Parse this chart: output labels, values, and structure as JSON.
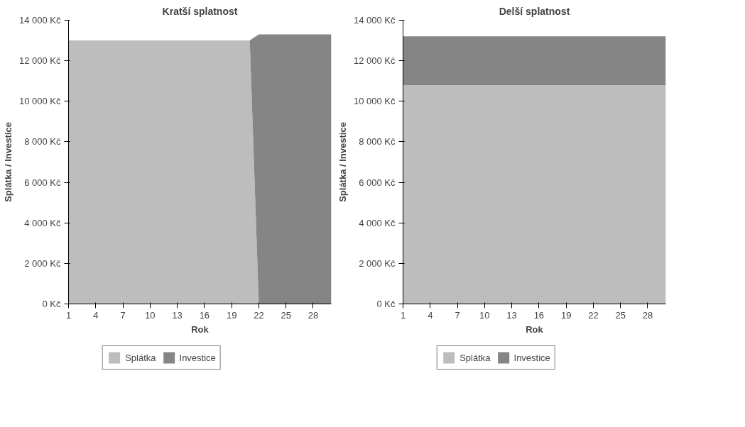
{
  "chart_data": [
    {
      "type": "area",
      "title": "Kratší splatnost",
      "xlabel": "Rok",
      "ylabel": "Splátka / Investice",
      "stacked": true,
      "x": [
        1,
        2,
        3,
        4,
        5,
        6,
        7,
        8,
        9,
        10,
        11,
        12,
        13,
        14,
        15,
        16,
        17,
        18,
        19,
        20,
        21,
        22,
        23,
        24,
        25,
        26,
        27,
        28,
        29,
        30
      ],
      "series": [
        {
          "name": "Splátka",
          "color": "#bdbdbd",
          "values": [
            13000,
            13000,
            13000,
            13000,
            13000,
            13000,
            13000,
            13000,
            13000,
            13000,
            13000,
            13000,
            13000,
            13000,
            13000,
            13000,
            13000,
            13000,
            13000,
            13000,
            13000,
            0,
            0,
            0,
            0,
            0,
            0,
            0,
            0,
            0
          ]
        },
        {
          "name": "Investice",
          "color": "#858585",
          "values": [
            0,
            0,
            0,
            0,
            0,
            0,
            0,
            0,
            0,
            0,
            0,
            0,
            0,
            0,
            0,
            0,
            0,
            0,
            0,
            0,
            0,
            13300,
            13300,
            13300,
            13300,
            13300,
            13300,
            13300,
            13300,
            13300
          ]
        }
      ],
      "xlim": [
        1,
        30
      ],
      "xticks": [
        1,
        4,
        7,
        10,
        13,
        16,
        19,
        22,
        25,
        28
      ],
      "ylim": [
        0,
        14000
      ],
      "yticks": [
        {
          "value": 0,
          "label": "0 Kč"
        },
        {
          "value": 2000,
          "label": "2 000 Kč"
        },
        {
          "value": 4000,
          "label": "4 000 Kč"
        },
        {
          "value": 6000,
          "label": "6 000 Kč"
        },
        {
          "value": 8000,
          "label": "8 000 Kč"
        },
        {
          "value": 10000,
          "label": "10 000 Kč"
        },
        {
          "value": 12000,
          "label": "12 000 Kč"
        },
        {
          "value": 14000,
          "label": "14 000 Kč"
        }
      ],
      "legend": "bottom"
    },
    {
      "type": "area",
      "title": "Delší splatnost",
      "xlabel": "Rok",
      "ylabel": "Splátka / Investice",
      "stacked": true,
      "x": [
        1,
        2,
        3,
        4,
        5,
        6,
        7,
        8,
        9,
        10,
        11,
        12,
        13,
        14,
        15,
        16,
        17,
        18,
        19,
        20,
        21,
        22,
        23,
        24,
        25,
        26,
        27,
        28,
        29,
        30
      ],
      "series": [
        {
          "name": "Splátka",
          "color": "#bdbdbd",
          "values": [
            10800,
            10800,
            10800,
            10800,
            10800,
            10800,
            10800,
            10800,
            10800,
            10800,
            10800,
            10800,
            10800,
            10800,
            10800,
            10800,
            10800,
            10800,
            10800,
            10800,
            10800,
            10800,
            10800,
            10800,
            10800,
            10800,
            10800,
            10800,
            10800,
            10800
          ]
        },
        {
          "name": "Investice",
          "color": "#858585",
          "values": [
            2400,
            2400,
            2400,
            2400,
            2400,
            2400,
            2400,
            2400,
            2400,
            2400,
            2400,
            2400,
            2400,
            2400,
            2400,
            2400,
            2400,
            2400,
            2400,
            2400,
            2400,
            2400,
            2400,
            2400,
            2400,
            2400,
            2400,
            2400,
            2400,
            2400
          ]
        }
      ],
      "xlim": [
        1,
        30
      ],
      "xticks": [
        1,
        4,
        7,
        10,
        13,
        16,
        19,
        22,
        25,
        28
      ],
      "ylim": [
        0,
        14000
      ],
      "yticks": [
        {
          "value": 0,
          "label": "0 Kč"
        },
        {
          "value": 2000,
          "label": "2 000 Kč"
        },
        {
          "value": 4000,
          "label": "4 000 Kč"
        },
        {
          "value": 6000,
          "label": "6 000 Kč"
        },
        {
          "value": 8000,
          "label": "8 000 Kč"
        },
        {
          "value": 10000,
          "label": "10 000 Kč"
        },
        {
          "value": 12000,
          "label": "12 000 Kč"
        },
        {
          "value": 14000,
          "label": "14 000 Kč"
        }
      ],
      "legend": "bottom"
    }
  ]
}
